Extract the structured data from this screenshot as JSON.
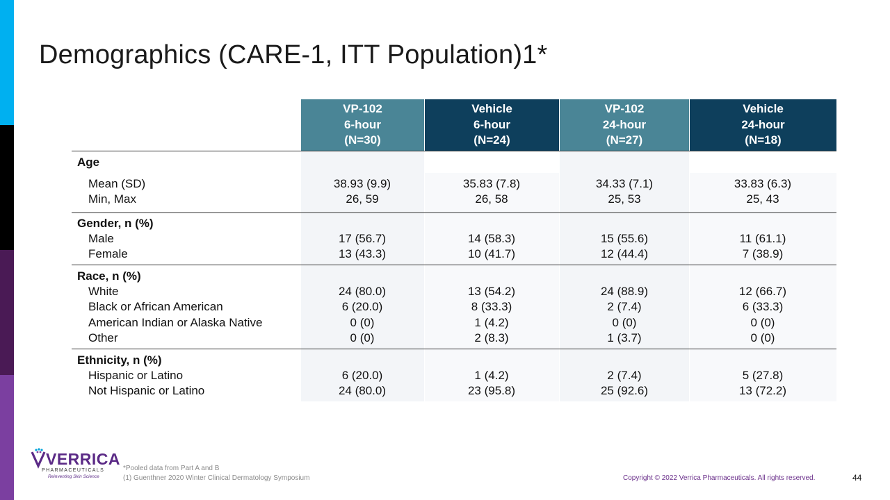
{
  "title": "Demographics (CARE-1, ITT Population)1*",
  "colors": {
    "teal": "#4a8596",
    "navy": "#0e3f5c",
    "row_tint": "#f5f7f9",
    "copyright": "#6a2f8a"
  },
  "columns": [
    {
      "line1": "VP-102",
      "line2": "6-hour",
      "line3": "(N=30)"
    },
    {
      "line1": "Vehicle",
      "line2": "6-hour",
      "line3": "(N=24)"
    },
    {
      "line1": "VP-102",
      "line2": "24-hour",
      "line3": "(N=27)"
    },
    {
      "line1": "Vehicle",
      "line2": "24-hour",
      "line3": "(N=18)"
    }
  ],
  "sections": {
    "age": {
      "heading": "Age",
      "rows": [
        {
          "label": "Mean (SD)",
          "values": [
            "38.93 (9.9)",
            "35.83 (7.8)",
            "34.33 (7.1)",
            "33.83 (6.3)"
          ]
        },
        {
          "label": "Min, Max",
          "values": [
            "26, 59",
            "26, 58",
            "25, 53",
            "25, 43"
          ]
        }
      ]
    },
    "gender": {
      "heading": "Gender, n (%)",
      "rows": [
        {
          "label": "Male",
          "values": [
            "17 (56.7)",
            "14 (58.3)",
            "15 (55.6)",
            "11 (61.1)"
          ]
        },
        {
          "label": "Female",
          "values": [
            "13 (43.3)",
            "10 (41.7)",
            "12 (44.4)",
            "7 (38.9)"
          ]
        }
      ]
    },
    "race": {
      "heading": "Race, n (%)",
      "rows": [
        {
          "label": "White",
          "values": [
            "24 (80.0)",
            "13 (54.2)",
            "24 (88.9)",
            "12 (66.7)"
          ]
        },
        {
          "label": "Black or African American",
          "values": [
            "6 (20.0)",
            "8 (33.3)",
            "2 (7.4)",
            "6 (33.3)"
          ]
        },
        {
          "label": "American Indian or Alaska Native",
          "values": [
            "0 (0)",
            "1 (4.2)",
            "0 (0)",
            "0 (0)"
          ]
        },
        {
          "label": "Other",
          "values": [
            "0 (0)",
            "2 (8.3)",
            "1 (3.7)",
            "0 (0)"
          ]
        }
      ]
    },
    "ethnicity": {
      "heading": "Ethnicity, n (%)",
      "rows": [
        {
          "label": "Hispanic or Latino",
          "values": [
            "6 (20.0)",
            "1 (4.2)",
            "2 (7.4)",
            "5 (27.8)"
          ]
        },
        {
          "label": "Not Hispanic or Latino",
          "values": [
            "24 (80.0)",
            "23 (95.8)",
            "25 (92.6)",
            "13 (72.2)"
          ]
        }
      ]
    }
  },
  "footnotes": {
    "pooled": "*Pooled data from Part A and B",
    "reference": "(1) Guenthner 2020 Winter Clinical Dermatology Symposium"
  },
  "logo": {
    "name": "VERRICA",
    "sub": "PHARMACEUTICALS",
    "tagline": "Reinventing Skin Science"
  },
  "copyright": "Copyright © 2022 Verrica Pharmaceuticals. All rights reserved.",
  "page_number": "44"
}
